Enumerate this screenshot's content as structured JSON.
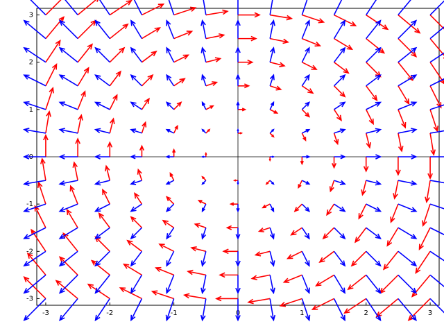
{
  "chart_data": {
    "type": "quiver",
    "x": [
      -3,
      -2.5,
      -2,
      -1.5,
      -1,
      -0.5,
      0,
      0.5,
      1,
      1.5,
      2,
      2.5,
      3
    ],
    "y": [
      -3,
      -2.5,
      -2,
      -1.5,
      -1,
      -0.5,
      0,
      0.5,
      1,
      1.5,
      2,
      2.5,
      3
    ],
    "xlim": [
      -3.14,
      3.14
    ],
    "ylim": [
      -3.14,
      3.14
    ],
    "xticks": [
      -3,
      -2,
      -1,
      0,
      1,
      2,
      3
    ],
    "yticks": [
      -3,
      -2,
      -1,
      0,
      1,
      2,
      3
    ],
    "series": [
      {
        "color": "#ff0000",
        "u": [
          [
            -3,
            -3,
            -3,
            -3,
            -3,
            -3,
            -3,
            -3,
            -3,
            -3,
            -3,
            -3,
            -3
          ],
          [
            -2.5,
            -2.5,
            -2.5,
            -2.5,
            -2.5,
            -2.5,
            -2.5,
            -2.5,
            -2.5,
            -2.5,
            -2.5,
            -2.5,
            -2.5
          ],
          [
            -2,
            -2,
            -2,
            -2,
            -2,
            -2,
            -2,
            -2,
            -2,
            -2,
            -2,
            -2,
            -2
          ],
          [
            -1.5,
            -1.5,
            -1.5,
            -1.5,
            -1.5,
            -1.5,
            -1.5,
            -1.5,
            -1.5,
            -1.5,
            -1.5,
            -1.5,
            -1.5
          ],
          [
            -1,
            -1,
            -1,
            -1,
            -1,
            -1,
            -1,
            -1,
            -1,
            -1,
            -1,
            -1,
            -1
          ],
          [
            -0.5,
            -0.5,
            -0.5,
            -0.5,
            -0.5,
            -0.5,
            -0.5,
            -0.5,
            -0.5,
            -0.5,
            -0.5,
            -0.5,
            -0.5
          ],
          [
            0,
            0,
            0,
            0,
            0,
            0,
            0,
            0,
            0,
            0,
            0,
            0,
            0
          ],
          [
            0.5,
            0.5,
            0.5,
            0.5,
            0.5,
            0.5,
            0.5,
            0.5,
            0.5,
            0.5,
            0.5,
            0.5,
            0.5
          ],
          [
            1,
            1,
            1,
            1,
            1,
            1,
            1,
            1,
            1,
            1,
            1,
            1,
            1
          ],
          [
            1.5,
            1.5,
            1.5,
            1.5,
            1.5,
            1.5,
            1.5,
            1.5,
            1.5,
            1.5,
            1.5,
            1.5,
            1.5
          ],
          [
            2,
            2,
            2,
            2,
            2,
            2,
            2,
            2,
            2,
            2,
            2,
            2,
            2
          ],
          [
            2.5,
            2.5,
            2.5,
            2.5,
            2.5,
            2.5,
            2.5,
            2.5,
            2.5,
            2.5,
            2.5,
            2.5,
            2.5
          ],
          [
            3,
            3,
            3,
            3,
            3,
            3,
            3,
            3,
            3,
            3,
            3,
            3,
            3
          ]
        ],
        "v": [
          [
            3,
            2.5,
            2,
            1.5,
            1,
            0.5,
            0,
            -0.5,
            -1,
            -1.5,
            -2,
            -2.5,
            -3
          ],
          [
            3,
            2.5,
            2,
            1.5,
            1,
            0.5,
            0,
            -0.5,
            -1,
            -1.5,
            -2,
            -2.5,
            -3
          ],
          [
            3,
            2.5,
            2,
            1.5,
            1,
            0.5,
            0,
            -0.5,
            -1,
            -1.5,
            -2,
            -2.5,
            -3
          ],
          [
            3,
            2.5,
            2,
            1.5,
            1,
            0.5,
            0,
            -0.5,
            -1,
            -1.5,
            -2,
            -2.5,
            -3
          ],
          [
            3,
            2.5,
            2,
            1.5,
            1,
            0.5,
            0,
            -0.5,
            -1,
            -1.5,
            -2,
            -2.5,
            -3
          ],
          [
            3,
            2.5,
            2,
            1.5,
            1,
            0.5,
            0,
            -0.5,
            -1,
            -1.5,
            -2,
            -2.5,
            -3
          ],
          [
            3,
            2.5,
            2,
            1.5,
            1,
            0.5,
            0,
            -0.5,
            -1,
            -1.5,
            -2,
            -2.5,
            -3
          ],
          [
            3,
            2.5,
            2,
            1.5,
            1,
            0.5,
            0,
            -0.5,
            -1,
            -1.5,
            -2,
            -2.5,
            -3
          ],
          [
            3,
            2.5,
            2,
            1.5,
            1,
            0.5,
            0,
            -0.5,
            -1,
            -1.5,
            -2,
            -2.5,
            -3
          ],
          [
            3,
            2.5,
            2,
            1.5,
            1,
            0.5,
            0,
            -0.5,
            -1,
            -1.5,
            -2,
            -2.5,
            -3
          ],
          [
            3,
            2.5,
            2,
            1.5,
            1,
            0.5,
            0,
            -0.5,
            -1,
            -1.5,
            -2,
            -2.5,
            -3
          ],
          [
            3,
            2.5,
            2,
            1.5,
            1,
            0.5,
            0,
            -0.5,
            -1,
            -1.5,
            -2,
            -2.5,
            -3
          ],
          [
            3,
            2.5,
            2,
            1.5,
            1,
            0.5,
            0,
            -0.5,
            -1,
            -1.5,
            -2,
            -2.5,
            -3
          ]
        ]
      },
      {
        "color": "#0000ff",
        "u": [
          [
            -3,
            -2.5,
            -2,
            -1.5,
            -1,
            -0.5,
            0,
            0.5,
            1,
            1.5,
            2,
            2.5,
            3
          ],
          [
            -3,
            -2.5,
            -2,
            -1.5,
            -1,
            -0.5,
            0,
            0.5,
            1,
            1.5,
            2,
            2.5,
            3
          ],
          [
            -3,
            -2.5,
            -2,
            -1.5,
            -1,
            -0.5,
            0,
            0.5,
            1,
            1.5,
            2,
            2.5,
            3
          ],
          [
            -3,
            -2.5,
            -2,
            -1.5,
            -1,
            -0.5,
            0,
            0.5,
            1,
            1.5,
            2,
            2.5,
            3
          ],
          [
            -3,
            -2.5,
            -2,
            -1.5,
            -1,
            -0.5,
            0,
            0.5,
            1,
            1.5,
            2,
            2.5,
            3
          ],
          [
            -3,
            -2.5,
            -2,
            -1.5,
            -1,
            -0.5,
            0,
            0.5,
            1,
            1.5,
            2,
            2.5,
            3
          ],
          [
            -3,
            -2.5,
            -2,
            -1.5,
            -1,
            -0.5,
            0,
            0.5,
            1,
            1.5,
            2,
            2.5,
            3
          ],
          [
            -3,
            -2.5,
            -2,
            -1.5,
            -1,
            -0.5,
            0,
            0.5,
            1,
            1.5,
            2,
            2.5,
            3
          ],
          [
            -3,
            -2.5,
            -2,
            -1.5,
            -1,
            -0.5,
            0,
            0.5,
            1,
            1.5,
            2,
            2.5,
            3
          ],
          [
            -3,
            -2.5,
            -2,
            -1.5,
            -1,
            -0.5,
            0,
            0.5,
            1,
            1.5,
            2,
            2.5,
            3
          ],
          [
            -3,
            -2.5,
            -2,
            -1.5,
            -1,
            -0.5,
            0,
            0.5,
            1,
            1.5,
            2,
            2.5,
            3
          ],
          [
            -3,
            -2.5,
            -2,
            -1.5,
            -1,
            -0.5,
            0,
            0.5,
            1,
            1.5,
            2,
            2.5,
            3
          ],
          [
            -3,
            -2.5,
            -2,
            -1.5,
            -1,
            -0.5,
            0,
            0.5,
            1,
            1.5,
            2,
            2.5,
            3
          ]
        ],
        "v": [
          [
            -3,
            -3,
            -3,
            -3,
            -3,
            -3,
            -3,
            -3,
            -3,
            -3,
            -3,
            -3,
            -3
          ],
          [
            -2.5,
            -2.5,
            -2.5,
            -2.5,
            -2.5,
            -2.5,
            -2.5,
            -2.5,
            -2.5,
            -2.5,
            -2.5,
            -2.5,
            -2.5
          ],
          [
            -2,
            -2,
            -2,
            -2,
            -2,
            -2,
            -2,
            -2,
            -2,
            -2,
            -2,
            -2,
            -2
          ],
          [
            -1.5,
            -1.5,
            -1.5,
            -1.5,
            -1.5,
            -1.5,
            -1.5,
            -1.5,
            -1.5,
            -1.5,
            -1.5,
            -1.5,
            -1.5
          ],
          [
            -1,
            -1,
            -1,
            -1,
            -1,
            -1,
            -1,
            -1,
            -1,
            -1,
            -1,
            -1,
            -1
          ],
          [
            -0.5,
            -0.5,
            -0.5,
            -0.5,
            -0.5,
            -0.5,
            -0.5,
            -0.5,
            -0.5,
            -0.5,
            -0.5,
            -0.5,
            -0.5
          ],
          [
            0,
            0,
            0,
            0,
            0,
            0,
            0,
            0,
            0,
            0,
            0,
            0,
            0
          ],
          [
            0.5,
            0.5,
            0.5,
            0.5,
            0.5,
            0.5,
            0.5,
            0.5,
            0.5,
            0.5,
            0.5,
            0.5,
            0.5
          ],
          [
            1,
            1,
            1,
            1,
            1,
            1,
            1,
            1,
            1,
            1,
            1,
            1,
            1
          ],
          [
            1.5,
            1.5,
            1.5,
            1.5,
            1.5,
            1.5,
            1.5,
            1.5,
            1.5,
            1.5,
            1.5,
            1.5,
            1.5
          ],
          [
            2,
            2,
            2,
            2,
            2,
            2,
            2,
            2,
            2,
            2,
            2,
            2,
            2
          ],
          [
            2.5,
            2.5,
            2.5,
            2.5,
            2.5,
            2.5,
            2.5,
            2.5,
            2.5,
            2.5,
            2.5,
            2.5,
            2.5
          ],
          [
            3,
            3,
            3,
            3,
            3,
            3,
            3,
            3,
            3,
            3,
            3,
            3,
            3
          ]
        ]
      }
    ]
  }
}
